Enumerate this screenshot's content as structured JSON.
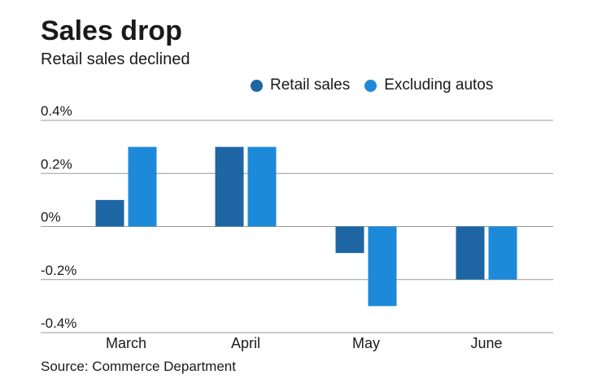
{
  "chart_data": {
    "type": "bar",
    "title": "Sales drop",
    "subtitle": "Retail sales declined",
    "categories": [
      "March",
      "April",
      "May",
      "June"
    ],
    "series": [
      {
        "name": "Retail sales",
        "color": "#1e65a4",
        "values": [
          0.1,
          0.3,
          -0.1,
          -0.2
        ]
      },
      {
        "name": "Excluding autos",
        "color": "#1d8ad9",
        "values": [
          0.3,
          0.3,
          -0.3,
          -0.2
        ]
      }
    ],
    "yticks": [
      0.4,
      0.2,
      0,
      -0.2,
      -0.4
    ],
    "ytick_labels": [
      "0.4%",
      "0.2%",
      "0%",
      "-0.2%",
      "-0.4%"
    ],
    "ylim": [
      -0.4,
      0.4
    ],
    "xlabel": "",
    "ylabel": "",
    "legend_position": "top",
    "grid": true,
    "source": "Source: Commerce Department"
  }
}
